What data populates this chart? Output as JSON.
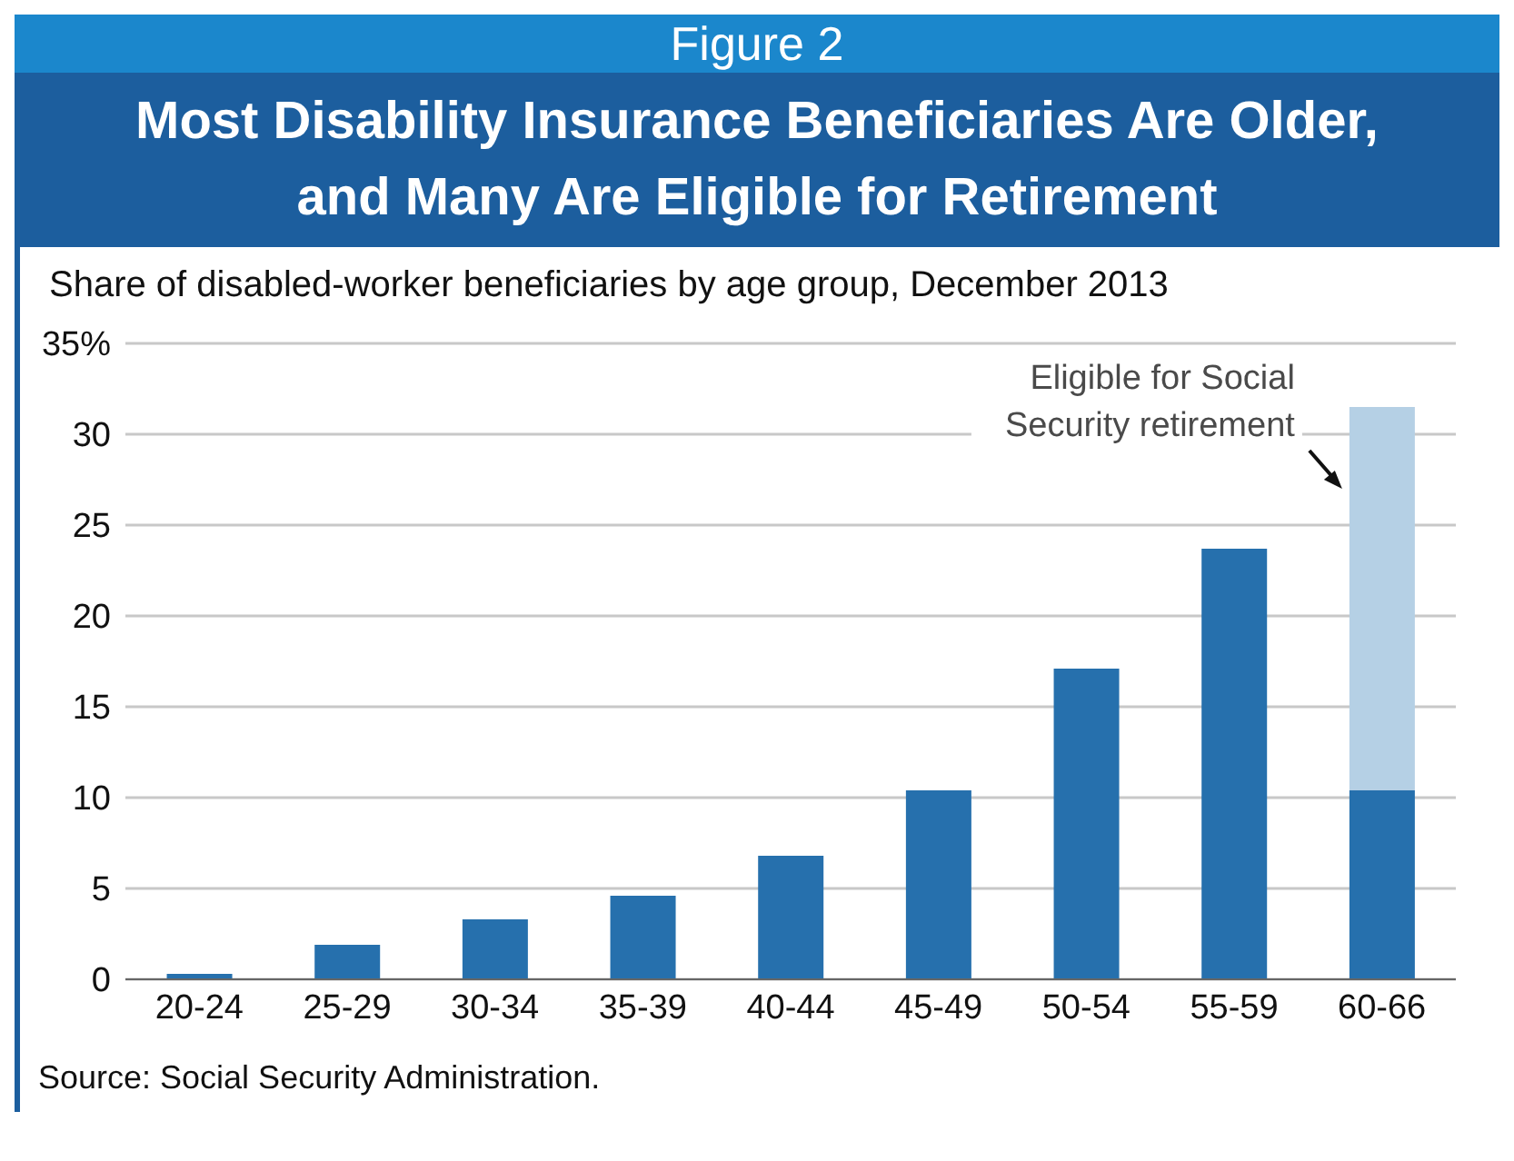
{
  "chart_data": {
    "type": "bar",
    "title": "Figure 2",
    "subtitle": "Most Disability Insurance Beneficiaries Are Older, and Many Are Eligible for Retirement",
    "ylabel": "Share of disabled-worker beneficiaries by age group, December 2013",
    "categories": [
      "20-24",
      "25-29",
      "30-34",
      "35-39",
      "40-44",
      "45-49",
      "50-54",
      "55-59",
      "60-66"
    ],
    "series": [
      {
        "color": "#2670ad",
        "values": [
          0.3,
          1.9,
          3.3,
          4.6,
          6.8,
          10.4,
          17.1,
          23.7,
          10.4
        ]
      },
      {
        "color": "#b5d0e5",
        "values": [
          null,
          null,
          null,
          null,
          null,
          null,
          null,
          null,
          21.1
        ]
      }
    ],
    "stacked": true,
    "ylim": [
      0,
      35
    ],
    "yticks": [
      0,
      5,
      10,
      15,
      20,
      25,
      30,
      {
        "value": 35,
        "label": "35%"
      }
    ],
    "grid": "y",
    "annotations": [
      "Eligible for Social Security retirement",
      "Source: Social Security Administration."
    ]
  }
}
